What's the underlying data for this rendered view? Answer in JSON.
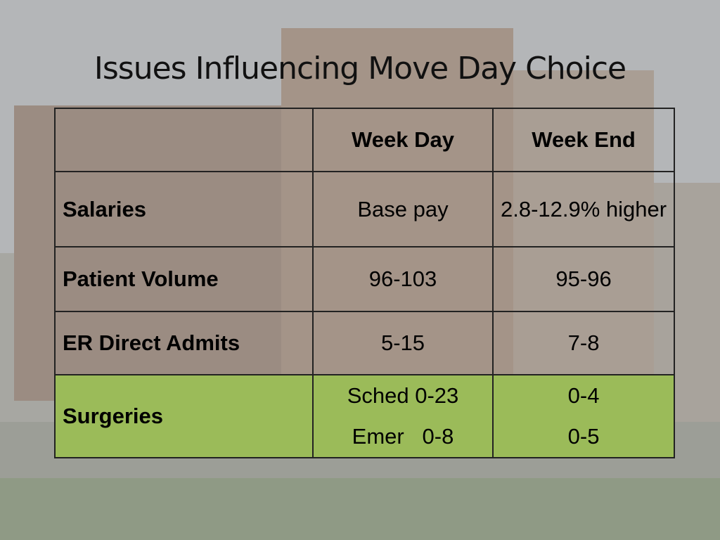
{
  "title": "Issues Influencing Move Day Choice",
  "table": {
    "columns": [
      "Week Day",
      "Week End"
    ],
    "rows": [
      {
        "label": "Salaries",
        "cells": [
          [
            "Base pay"
          ],
          [
            "2.8-12.9% higher"
          ]
        ]
      },
      {
        "label": "Patient Volume",
        "cells": [
          [
            "96-103"
          ],
          [
            "95-96"
          ]
        ]
      },
      {
        "label": "ER Direct Admits",
        "cells": [
          [
            "5-15"
          ],
          [
            "7-8"
          ]
        ]
      },
      {
        "label": "Surgeries",
        "cells": [
          [
            "Sched 0-23",
            "Emer   0-8"
          ],
          [
            "0-4",
            "0-5"
          ]
        ]
      }
    ]
  }
}
